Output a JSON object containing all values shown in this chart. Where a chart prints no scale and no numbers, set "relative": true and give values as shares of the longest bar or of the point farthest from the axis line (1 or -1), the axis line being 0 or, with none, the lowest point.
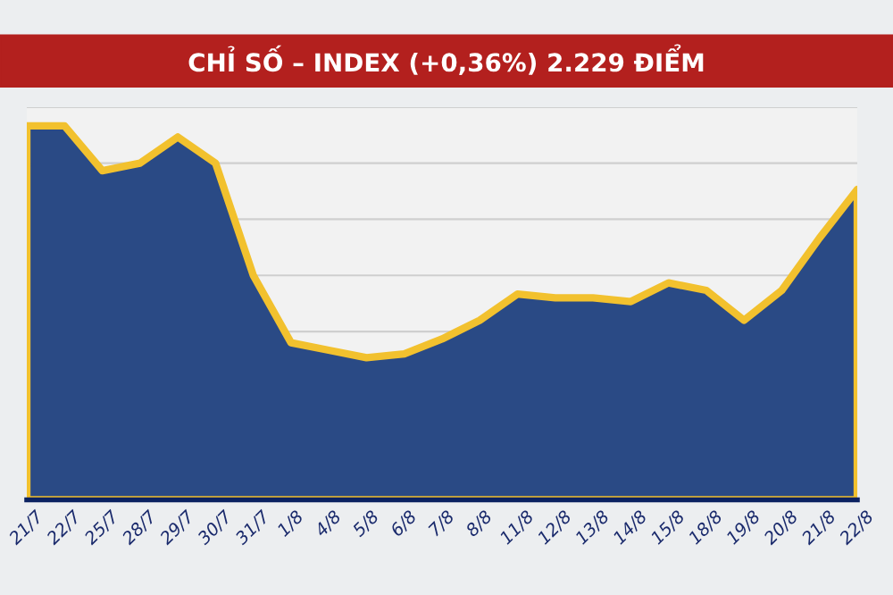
{
  "chart_data": {
    "type": "area",
    "title": "CHỈ SỐ – INDEX (+0,36%) 2.229 ĐIỂM",
    "relative": true,
    "categories": [
      "21/7",
      "22/7",
      "25/7",
      "28/7",
      "29/7",
      "30/7",
      "31/7",
      "1/8",
      "4/8",
      "5/8",
      "6/8",
      "7/8",
      "8/8",
      "11/8",
      "12/8",
      "13/8",
      "14/8",
      "15/8",
      "18/8",
      "19/8",
      "20/8",
      "21/8",
      "22/8"
    ],
    "series": [
      {
        "color": "#2a4a85",
        "values": [
          1,
          1,
          0.88,
          0.9,
          0.97,
          0.9,
          0.6,
          0.42,
          0.4,
          0.38,
          0.39,
          0.43,
          0.48,
          0.55,
          0.54,
          0.54,
          0.53,
          0.58,
          0.56,
          0.48,
          0.56,
          0.7,
          0.83
        ]
      }
    ],
    "grid": "y",
    "legend": false
  }
}
